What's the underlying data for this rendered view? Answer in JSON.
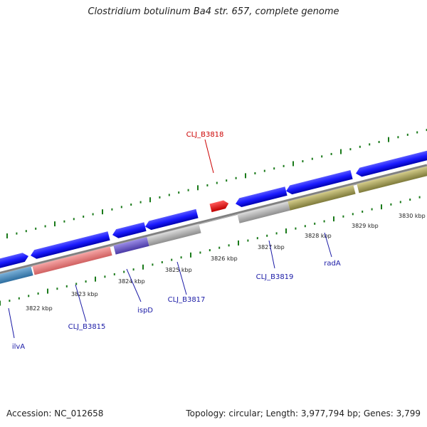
{
  "title": "Clostridium botulinum Ba4 str. 657, complete genome",
  "footer": {
    "accession": "Accession: NC_012658",
    "summary": "Topology: circular; Length: 3,977,794 bp; Genes: 3,799"
  },
  "scale_labels": [
    "3822 kbp",
    "3823 kbp",
    "3824 kbp",
    "3825 kbp",
    "3826 kbp",
    "3827 kbp",
    "3828 kbp",
    "3829 kbp",
    "3830 kbp"
  ],
  "gene_labels": [
    {
      "text": "CLJ_B3818",
      "color": "#cc0000"
    },
    {
      "text": "ilvA",
      "color": "#1a1aa6"
    },
    {
      "text": "CLJ_B3815",
      "color": "#1a1aa6"
    },
    {
      "text": "ispD",
      "color": "#1a1aa6"
    },
    {
      "text": "CLJ_B3817",
      "color": "#1a1aa6"
    },
    {
      "text": "CLJ_B3819",
      "color": "#1a1aa6"
    },
    {
      "text": "radA",
      "color": "#1a1aa6"
    }
  ],
  "colors": {
    "forward_cds": "#1a1aff",
    "reverse_cds": "#1a1aff",
    "highlight_gene": "#ff0000",
    "pink_feature": "#f08080",
    "purple_feature": "#7b68d6",
    "gray_feature": "#bdbdbd",
    "olive_feature": "#b8b06a",
    "steel_feature": "#4682b4",
    "backbone": "#808080",
    "tick": "#1a7a1a"
  }
}
